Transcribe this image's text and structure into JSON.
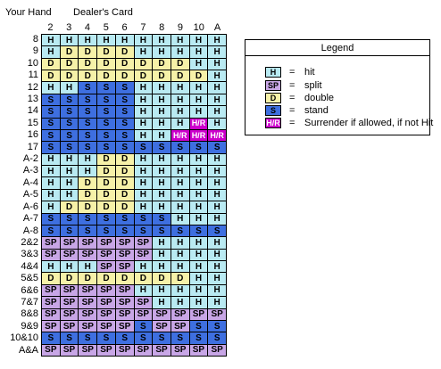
{
  "header": {
    "your_hand": "Your Hand",
    "dealers_card": "Dealer's Card"
  },
  "columns": [
    "2",
    "3",
    "4",
    "5",
    "6",
    "7",
    "8",
    "9",
    "10",
    "A"
  ],
  "rows": [
    {
      "label": "8",
      "cells": [
        "H",
        "H",
        "H",
        "H",
        "H",
        "H",
        "H",
        "H",
        "H",
        "H"
      ]
    },
    {
      "label": "9",
      "cells": [
        "H",
        "D",
        "D",
        "D",
        "D",
        "H",
        "H",
        "H",
        "H",
        "H"
      ]
    },
    {
      "label": "10",
      "cells": [
        "D",
        "D",
        "D",
        "D",
        "D",
        "D",
        "D",
        "D",
        "H",
        "H"
      ]
    },
    {
      "label": "11",
      "cells": [
        "D",
        "D",
        "D",
        "D",
        "D",
        "D",
        "D",
        "D",
        "D",
        "H"
      ]
    },
    {
      "label": "12",
      "cells": [
        "H",
        "H",
        "S",
        "S",
        "S",
        "H",
        "H",
        "H",
        "H",
        "H"
      ]
    },
    {
      "label": "13",
      "cells": [
        "S",
        "S",
        "S",
        "S",
        "S",
        "H",
        "H",
        "H",
        "H",
        "H"
      ]
    },
    {
      "label": "14",
      "cells": [
        "S",
        "S",
        "S",
        "S",
        "S",
        "H",
        "H",
        "H",
        "H",
        "H"
      ]
    },
    {
      "label": "15",
      "cells": [
        "S",
        "S",
        "S",
        "S",
        "S",
        "H",
        "H",
        "H",
        "H/R",
        "H"
      ]
    },
    {
      "label": "16",
      "cells": [
        "S",
        "S",
        "S",
        "S",
        "S",
        "H",
        "H",
        "H/R",
        "H/R",
        "H/R"
      ]
    },
    {
      "label": "17",
      "cells": [
        "S",
        "S",
        "S",
        "S",
        "S",
        "S",
        "S",
        "S",
        "S",
        "S"
      ]
    },
    {
      "label": "A-2",
      "cells": [
        "H",
        "H",
        "H",
        "D",
        "D",
        "H",
        "H",
        "H",
        "H",
        "H"
      ]
    },
    {
      "label": "A-3",
      "cells": [
        "H",
        "H",
        "H",
        "D",
        "D",
        "H",
        "H",
        "H",
        "H",
        "H"
      ]
    },
    {
      "label": "A-4",
      "cells": [
        "H",
        "H",
        "D",
        "D",
        "D",
        "H",
        "H",
        "H",
        "H",
        "H"
      ]
    },
    {
      "label": "A-5",
      "cells": [
        "H",
        "H",
        "D",
        "D",
        "D",
        "H",
        "H",
        "H",
        "H",
        "H"
      ]
    },
    {
      "label": "A-6",
      "cells": [
        "H",
        "D",
        "D",
        "D",
        "D",
        "H",
        "H",
        "H",
        "H",
        "H"
      ]
    },
    {
      "label": "A-7",
      "cells": [
        "S",
        "S",
        "S",
        "S",
        "S",
        "S",
        "S",
        "H",
        "H",
        "H"
      ]
    },
    {
      "label": "A-8",
      "cells": [
        "S",
        "S",
        "S",
        "S",
        "S",
        "S",
        "S",
        "S",
        "S",
        "S"
      ]
    },
    {
      "label": "2&2",
      "cells": [
        "SP",
        "SP",
        "SP",
        "SP",
        "SP",
        "SP",
        "H",
        "H",
        "H",
        "H"
      ]
    },
    {
      "label": "3&3",
      "cells": [
        "SP",
        "SP",
        "SP",
        "SP",
        "SP",
        "SP",
        "H",
        "H",
        "H",
        "H"
      ]
    },
    {
      "label": "4&4",
      "cells": [
        "H",
        "H",
        "H",
        "SP",
        "SP",
        "H",
        "H",
        "H",
        "H",
        "H"
      ]
    },
    {
      "label": "5&5",
      "cells": [
        "D",
        "D",
        "D",
        "D",
        "D",
        "D",
        "D",
        "D",
        "H",
        "H"
      ]
    },
    {
      "label": "6&6",
      "cells": [
        "SP",
        "SP",
        "SP",
        "SP",
        "SP",
        "H",
        "H",
        "H",
        "H",
        "H"
      ]
    },
    {
      "label": "7&7",
      "cells": [
        "SP",
        "SP",
        "SP",
        "SP",
        "SP",
        "SP",
        "H",
        "H",
        "H",
        "H"
      ]
    },
    {
      "label": "8&8",
      "cells": [
        "SP",
        "SP",
        "SP",
        "SP",
        "SP",
        "SP",
        "SP",
        "SP",
        "SP",
        "SP"
      ]
    },
    {
      "label": "9&9",
      "cells": [
        "SP",
        "SP",
        "SP",
        "SP",
        "SP",
        "S",
        "SP",
        "SP",
        "S",
        "S"
      ]
    },
    {
      "label": "10&10",
      "cells": [
        "S",
        "S",
        "S",
        "S",
        "S",
        "S",
        "S",
        "S",
        "S",
        "S"
      ]
    },
    {
      "label": "A&A",
      "cells": [
        "SP",
        "SP",
        "SP",
        "SP",
        "SP",
        "SP",
        "SP",
        "SP",
        "SP",
        "SP"
      ]
    }
  ],
  "legend": {
    "title": "Legend",
    "items": [
      {
        "code": "H",
        "eq": "=",
        "text": "hit",
        "color": "#b9eaf2"
      },
      {
        "code": "SP",
        "eq": "=",
        "text": "split",
        "color": "#c8a6e6"
      },
      {
        "code": "D",
        "eq": "=",
        "text": "double",
        "color": "#f6f1a8"
      },
      {
        "code": "S",
        "eq": "=",
        "text": "stand",
        "color": "#3e6fe0"
      },
      {
        "code": "H/R",
        "eq": "=",
        "text": "Surrender if allowed, if not Hit",
        "color": "#cc00cc"
      }
    ]
  },
  "colors": {
    "H": "#b9eaf2",
    "S": "#3e6fe0",
    "D": "#f6f1a8",
    "SP": "#c8a6e6",
    "H/R": "#cc00cc"
  }
}
